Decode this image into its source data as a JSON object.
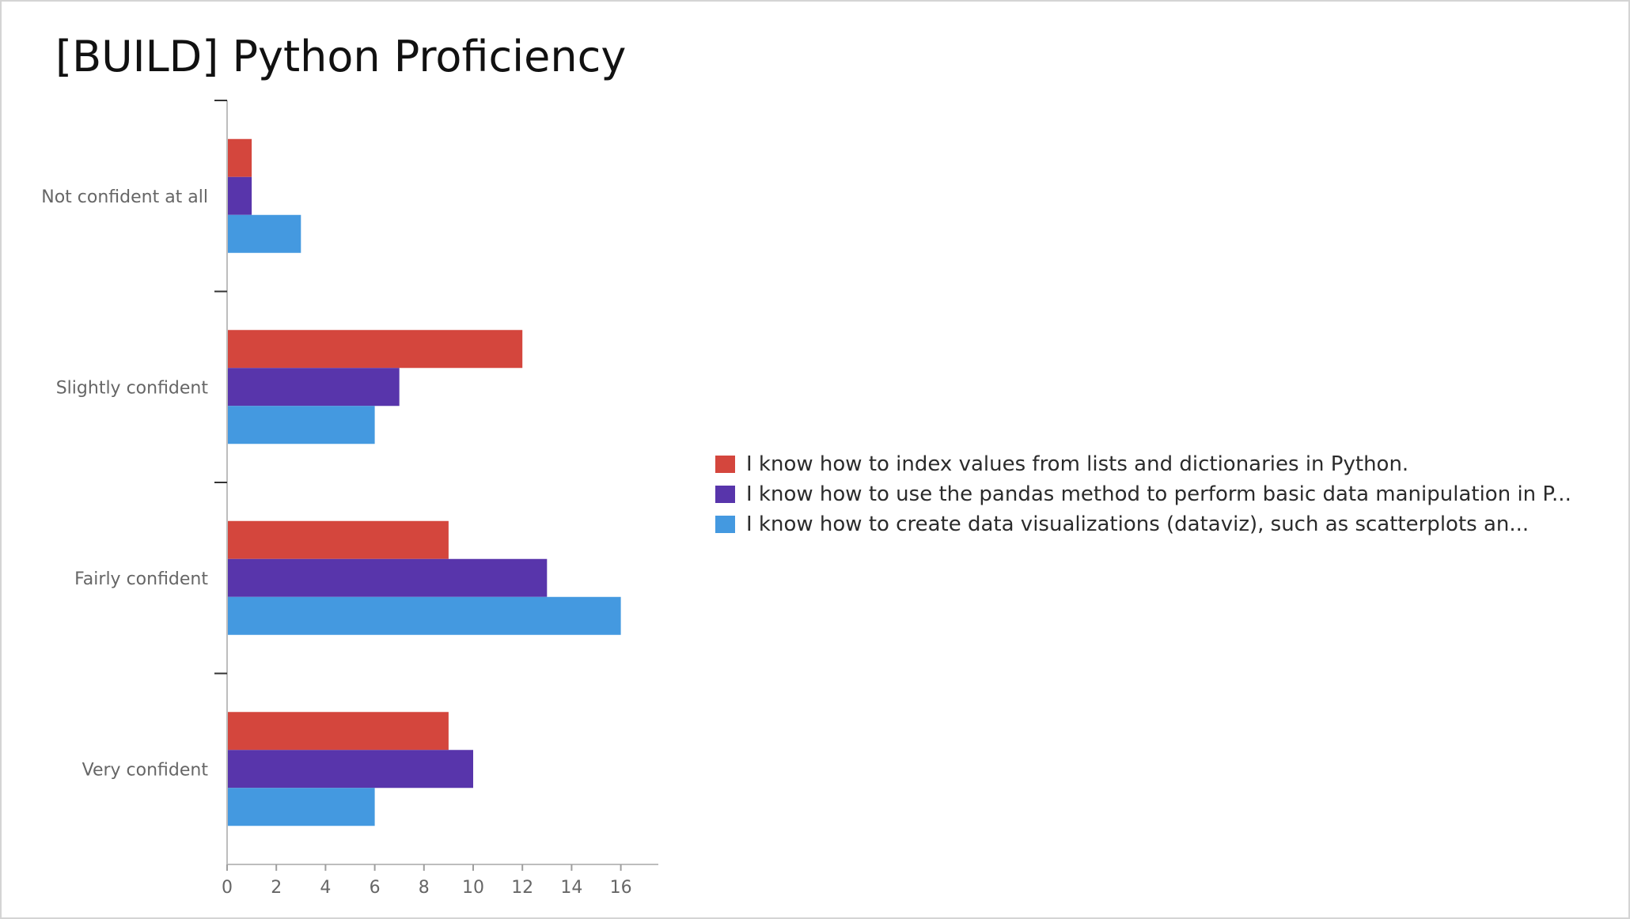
{
  "slide": {
    "title": "[BUILD] Python Proficiency"
  },
  "chart_data": {
    "type": "bar",
    "orientation": "horizontal",
    "categories": [
      "Not confident at all",
      "Slightly confident",
      "Fairly confident",
      "Very confident"
    ],
    "series": [
      {
        "name": "I know how to index values from lists and dictionaries in Python.",
        "color": "#d4463d",
        "values": [
          1,
          12,
          9,
          9
        ]
      },
      {
        "name": "I know how to use the pandas method to perform basic data manipulation in P...",
        "color": "#5835ab",
        "values": [
          1,
          7,
          13,
          10
        ]
      },
      {
        "name": "I know how to create data visualizations (dataviz), such as scatterplots an...",
        "color": "#4499e0",
        "values": [
          3,
          6,
          16,
          6
        ]
      }
    ],
    "x_ticks": [
      0,
      2,
      4,
      6,
      8,
      10,
      12,
      14,
      16
    ],
    "xlim": [
      0,
      17.5
    ],
    "xlabel": "",
    "ylabel": "",
    "grid": false,
    "legend_position": "right"
  }
}
